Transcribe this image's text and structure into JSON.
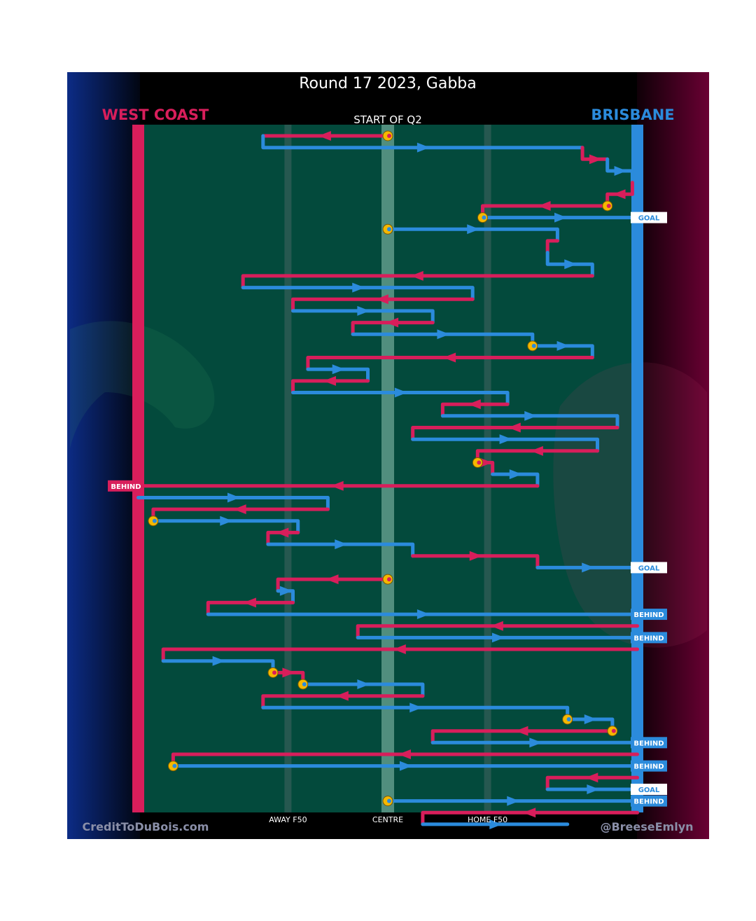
{
  "chart_data": {
    "type": "line",
    "title": "Round 17 2023, Gabba",
    "subtitle": "START OF Q2",
    "teams": {
      "away": "WEST COAST",
      "home": "BRISBANE"
    },
    "colors": {
      "away": "#d81e5b",
      "home": "#2b8bdc",
      "bounce": "#f5b800",
      "field": "#034a3c"
    },
    "x_axis": {
      "range": [
        0,
        100
      ],
      "ticks": [
        {
          "x": 30,
          "label": "AWAY F50"
        },
        {
          "x": 50,
          "label": "CENTRE"
        },
        {
          "x": 70,
          "label": "HOME F50"
        }
      ]
    },
    "bounce_marker": "ball-up / throw-in",
    "chains": [
      {
        "team": "away",
        "steps": [
          [
            50,
            1
          ],
          [
            25,
            1
          ]
        ],
        "start": "bounce"
      },
      {
        "team": "home",
        "steps": [
          [
            25,
            1
          ],
          [
            25,
            2
          ],
          [
            89,
            2
          ]
        ]
      },
      {
        "team": "away",
        "steps": [
          [
            89,
            2
          ],
          [
            89,
            3
          ],
          [
            94,
            3
          ]
        ]
      },
      {
        "team": "home",
        "steps": [
          [
            94,
            3
          ],
          [
            94,
            4
          ],
          [
            99,
            4
          ],
          [
            99,
            5
          ]
        ]
      },
      {
        "team": "away",
        "steps": [
          [
            99,
            5
          ],
          [
            99,
            6
          ],
          [
            94,
            6
          ],
          [
            94,
            7
          ]
        ]
      },
      {
        "team": "away",
        "steps": [
          [
            94,
            7
          ],
          [
            69,
            7
          ],
          [
            69,
            8
          ]
        ],
        "start": "bounce"
      },
      {
        "team": "home",
        "steps": [
          [
            69,
            8
          ],
          [
            100,
            8
          ]
        ],
        "start": "bounce",
        "result": "GOAL"
      },
      {
        "team": "home",
        "steps": [
          [
            50,
            9
          ],
          [
            84,
            9
          ],
          [
            84,
            10
          ]
        ],
        "start": "bounce"
      },
      {
        "team": "away",
        "steps": [
          [
            84,
            10
          ],
          [
            82,
            10
          ],
          [
            82,
            11
          ]
        ]
      },
      {
        "team": "home",
        "steps": [
          [
            82,
            11
          ],
          [
            82,
            12
          ],
          [
            91,
            12
          ],
          [
            91,
            13
          ]
        ]
      },
      {
        "team": "away",
        "steps": [
          [
            91,
            13
          ],
          [
            21,
            13
          ],
          [
            21,
            14
          ]
        ]
      },
      {
        "team": "home",
        "steps": [
          [
            21,
            14
          ],
          [
            67,
            14
          ],
          [
            67,
            15
          ]
        ]
      },
      {
        "team": "away",
        "steps": [
          [
            67,
            15
          ],
          [
            31,
            15
          ],
          [
            31,
            16
          ]
        ]
      },
      {
        "team": "home",
        "steps": [
          [
            31,
            16
          ],
          [
            59,
            16
          ],
          [
            59,
            17
          ]
        ]
      },
      {
        "team": "away",
        "steps": [
          [
            59,
            17
          ],
          [
            43,
            17
          ],
          [
            43,
            18
          ]
        ]
      },
      {
        "team": "home",
        "steps": [
          [
            43,
            18
          ],
          [
            79,
            18
          ],
          [
            79,
            19
          ]
        ]
      },
      {
        "team": "home",
        "steps": [
          [
            79,
            19
          ],
          [
            91,
            19
          ],
          [
            91,
            20
          ]
        ],
        "start": "bounce"
      },
      {
        "team": "away",
        "steps": [
          [
            91,
            20
          ],
          [
            34,
            20
          ],
          [
            34,
            21
          ]
        ]
      },
      {
        "team": "home",
        "steps": [
          [
            34,
            21
          ],
          [
            46,
            21
          ],
          [
            46,
            22
          ]
        ]
      },
      {
        "team": "away",
        "steps": [
          [
            46,
            22
          ],
          [
            31,
            22
          ],
          [
            31,
            23
          ]
        ]
      },
      {
        "team": "home",
        "steps": [
          [
            31,
            23
          ],
          [
            74,
            23
          ],
          [
            74,
            24
          ]
        ]
      },
      {
        "team": "away",
        "steps": [
          [
            74,
            24
          ],
          [
            61,
            24
          ],
          [
            61,
            25
          ]
        ]
      },
      {
        "team": "home",
        "steps": [
          [
            61,
            25
          ],
          [
            96,
            25
          ],
          [
            96,
            26
          ]
        ]
      },
      {
        "team": "away",
        "steps": [
          [
            96,
            26
          ],
          [
            55,
            26
          ],
          [
            55,
            27
          ]
        ]
      },
      {
        "team": "home",
        "steps": [
          [
            55,
            27
          ],
          [
            92,
            27
          ],
          [
            92,
            28
          ]
        ]
      },
      {
        "team": "away",
        "steps": [
          [
            92,
            28
          ],
          [
            68,
            28
          ],
          [
            68,
            29
          ]
        ]
      },
      {
        "team": "away",
        "steps": [
          [
            68,
            29
          ],
          [
            71,
            29
          ],
          [
            71,
            30
          ]
        ],
        "start": "bounce"
      },
      {
        "team": "home",
        "steps": [
          [
            71,
            30
          ],
          [
            80,
            30
          ],
          [
            80,
            31
          ]
        ]
      },
      {
        "team": "away",
        "steps": [
          [
            80,
            31
          ],
          [
            0,
            31
          ]
        ],
        "result": "BEHIND"
      },
      {
        "team": "home",
        "steps": [
          [
            0,
            32
          ],
          [
            38,
            32
          ],
          [
            38,
            33
          ]
        ]
      },
      {
        "team": "away",
        "steps": [
          [
            38,
            33
          ],
          [
            3,
            33
          ],
          [
            3,
            34
          ]
        ]
      },
      {
        "team": "home",
        "steps": [
          [
            3,
            34
          ],
          [
            32,
            34
          ],
          [
            32,
            35
          ]
        ],
        "start": "bounce"
      },
      {
        "team": "away",
        "steps": [
          [
            32,
            35
          ],
          [
            26,
            35
          ],
          [
            26,
            36
          ]
        ]
      },
      {
        "team": "home",
        "steps": [
          [
            26,
            36
          ],
          [
            55,
            36
          ],
          [
            55,
            37
          ]
        ]
      },
      {
        "team": "away",
        "steps": [
          [
            55,
            37
          ],
          [
            80,
            37
          ],
          [
            80,
            38
          ]
        ]
      },
      {
        "team": "home",
        "steps": [
          [
            80,
            38
          ],
          [
            100,
            38
          ]
        ],
        "result": "GOAL"
      },
      {
        "team": "away",
        "steps": [
          [
            50,
            39
          ],
          [
            28,
            39
          ],
          [
            28,
            40
          ]
        ],
        "start": "bounce"
      },
      {
        "team": "home",
        "steps": [
          [
            28,
            40
          ],
          [
            31,
            40
          ],
          [
            31,
            41
          ]
        ]
      },
      {
        "team": "away",
        "steps": [
          [
            31,
            41
          ],
          [
            14,
            41
          ],
          [
            14,
            42
          ]
        ]
      },
      {
        "team": "home",
        "steps": [
          [
            14,
            42
          ],
          [
            100,
            42
          ]
        ],
        "result": "BEHIND"
      },
      {
        "team": "away",
        "steps": [
          [
            100,
            43
          ],
          [
            44,
            43
          ],
          [
            44,
            44
          ]
        ]
      },
      {
        "team": "home",
        "steps": [
          [
            44,
            44
          ],
          [
            100,
            44
          ]
        ],
        "result": "BEHIND"
      },
      {
        "team": "away",
        "steps": [
          [
            100,
            45
          ],
          [
            5,
            45
          ],
          [
            5,
            46
          ]
        ]
      },
      {
        "team": "home",
        "steps": [
          [
            5,
            46
          ],
          [
            27,
            46
          ],
          [
            27,
            47
          ]
        ]
      },
      {
        "team": "away",
        "steps": [
          [
            27,
            47
          ],
          [
            33,
            47
          ],
          [
            33,
            48
          ]
        ],
        "start": "bounce"
      },
      {
        "team": "home",
        "steps": [
          [
            33,
            48
          ],
          [
            57,
            48
          ],
          [
            57,
            49
          ]
        ],
        "start": "bounce"
      },
      {
        "team": "away",
        "steps": [
          [
            57,
            49
          ],
          [
            25,
            49
          ],
          [
            25,
            50
          ]
        ]
      },
      {
        "team": "home",
        "steps": [
          [
            25,
            50
          ],
          [
            86,
            50
          ],
          [
            86,
            51
          ]
        ]
      },
      {
        "team": "home",
        "steps": [
          [
            86,
            51
          ],
          [
            95,
            51
          ],
          [
            95,
            52
          ]
        ],
        "start": "bounce"
      },
      {
        "team": "away",
        "steps": [
          [
            95,
            52
          ],
          [
            59,
            52
          ],
          [
            59,
            53
          ]
        ],
        "start": "bounce"
      },
      {
        "team": "home",
        "steps": [
          [
            59,
            53
          ],
          [
            100,
            53
          ]
        ],
        "result": "BEHIND"
      },
      {
        "team": "away",
        "steps": [
          [
            100,
            54
          ],
          [
            7,
            54
          ],
          [
            7,
            55
          ]
        ]
      },
      {
        "team": "home",
        "steps": [
          [
            7,
            55
          ],
          [
            100,
            55
          ]
        ],
        "start": "bounce",
        "result": "BEHIND"
      },
      {
        "team": "away",
        "steps": [
          [
            100,
            56
          ],
          [
            82,
            56
          ],
          [
            82,
            57
          ]
        ]
      },
      {
        "team": "home",
        "steps": [
          [
            82,
            57
          ],
          [
            100,
            57
          ]
        ],
        "result": "GOAL"
      },
      {
        "team": "home",
        "steps": [
          [
            50,
            58
          ],
          [
            100,
            58
          ]
        ],
        "start": "bounce",
        "result": "BEHIND"
      },
      {
        "team": "away",
        "steps": [
          [
            100,
            59
          ],
          [
            57,
            59
          ],
          [
            57,
            60
          ]
        ]
      },
      {
        "team": "home",
        "steps": [
          [
            57,
            60
          ],
          [
            86,
            60
          ]
        ]
      }
    ],
    "footer": {
      "left": "CreditToDuBois.com",
      "right": "@BreeseEmlyn"
    }
  }
}
